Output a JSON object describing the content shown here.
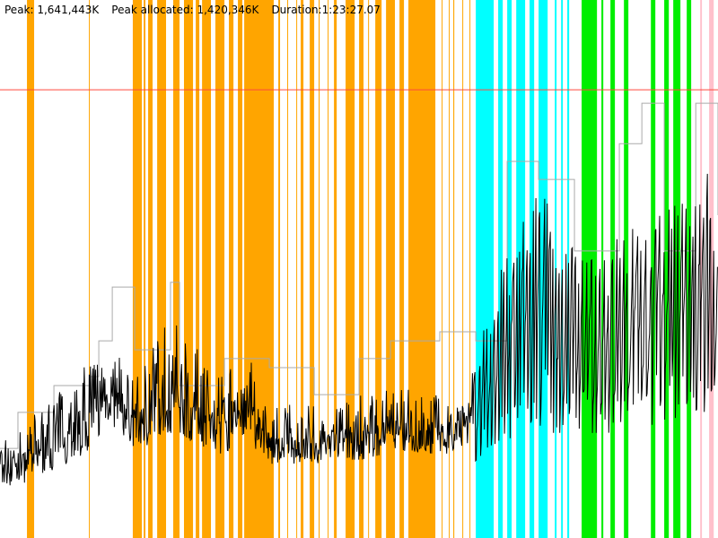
{
  "header": {
    "peak": "Peak: 1,641,443K",
    "peak_allocated": "Peak allocated: 1,420,346K",
    "duration": "Duration:1:23:27.07"
  },
  "chart_data": {
    "type": "line",
    "title": "",
    "xlabel": "",
    "ylabel": "",
    "x_units": "seconds",
    "y_units": "K",
    "xlim": [
      0,
      5007
    ],
    "ylim": [
      0,
      1970000
    ],
    "axes_visible": false,
    "grid": false,
    "reference_line": {
      "value": 1641443,
      "color": "#ff4a3d"
    },
    "band_colors": {
      "orange": "#ffa500",
      "cyan": "#00ffff",
      "green": "#00ee00",
      "pink": "#ffc0cb"
    },
    "bands": {
      "orange": [
        [
          188,
          238
        ],
        [
          620,
          626
        ],
        [
          926,
          989
        ],
        [
          1002,
          1014
        ],
        [
          1033,
          1064
        ],
        [
          1096,
          1158
        ],
        [
          1208,
          1252
        ],
        [
          1283,
          1346
        ],
        [
          1365,
          1390
        ],
        [
          1409,
          1471
        ],
        [
          1502,
          1565
        ],
        [
          1596,
          1628
        ],
        [
          1659,
          1690
        ],
        [
          1703,
          1909
        ],
        [
          1941,
          1953
        ],
        [
          2003,
          2009
        ],
        [
          2066,
          2072
        ],
        [
          2097,
          2116
        ],
        [
          2160,
          2191
        ],
        [
          2222,
          2229
        ],
        [
          2285,
          2291
        ],
        [
          2329,
          2348
        ],
        [
          2410,
          2473
        ],
        [
          2504,
          2535
        ],
        [
          2567,
          2573
        ],
        [
          2617,
          2661
        ],
        [
          2692,
          2754
        ],
        [
          2786,
          2817
        ],
        [
          2848,
          3036
        ],
        [
          3080,
          3086
        ],
        [
          3130,
          3136
        ],
        [
          3161,
          3168
        ],
        [
          3224,
          3230
        ],
        [
          3274,
          3280
        ]
      ],
      "cyan": [
        [
          3318,
          3443
        ],
        [
          3474,
          3506
        ],
        [
          3537,
          3568
        ],
        [
          3600,
          3662
        ],
        [
          3693,
          3725
        ],
        [
          3756,
          3819
        ],
        [
          3869,
          3881
        ],
        [
          3913,
          3925
        ],
        [
          3956,
          3969
        ]
      ],
      "green": [
        [
          4056,
          4163
        ],
        [
          4194,
          4207
        ],
        [
          4257,
          4288
        ],
        [
          4351,
          4382
        ],
        [
          4539,
          4570
        ],
        [
          4632,
          4664
        ],
        [
          4695,
          4745
        ],
        [
          4789,
          4820
        ]
      ],
      "pink": [
        [
          4883,
          4895
        ],
        [
          4945,
          4977
        ]
      ]
    },
    "series": [
      {
        "color": "#aaaaaa",
        "style": "step",
        "points": [
          [
            0,
            328000
          ],
          [
            125,
            460000
          ],
          [
            376,
            558000
          ],
          [
            626,
            591000
          ],
          [
            689,
            722000
          ],
          [
            783,
            919000
          ],
          [
            939,
            689000
          ],
          [
            1189,
            936000
          ],
          [
            1252,
            558000
          ],
          [
            1565,
            657000
          ],
          [
            1878,
            624000
          ],
          [
            2191,
            525000
          ],
          [
            2504,
            657000
          ],
          [
            2723,
            722000
          ],
          [
            3067,
            755000
          ],
          [
            3318,
            722000
          ],
          [
            3537,
            1379000
          ],
          [
            3756,
            1313000
          ],
          [
            4006,
            1051000
          ],
          [
            4319,
            1444000
          ],
          [
            4476,
            1592000
          ],
          [
            4632,
            1051000
          ],
          [
            4852,
            1592000
          ],
          [
            5007,
            1182000
          ]
        ]
      },
      {
        "color": "#000000",
        "style": "oscillating-envelope",
        "points_time_low_high": [
          [
            0,
            115000,
            361000
          ],
          [
            188,
            131000,
            427000
          ],
          [
            626,
            197000,
            657000
          ],
          [
            751,
            328000,
            722000
          ],
          [
            939,
            230000,
            591000
          ],
          [
            1189,
            230000,
            821000
          ],
          [
            1565,
            197000,
            591000
          ],
          [
            1690,
            263000,
            722000
          ],
          [
            1878,
            197000,
            492000
          ],
          [
            2191,
            197000,
            492000
          ],
          [
            2504,
            197000,
            525000
          ],
          [
            2817,
            230000,
            558000
          ],
          [
            3130,
            230000,
            525000
          ],
          [
            3318,
            263000,
            657000
          ],
          [
            3506,
            328000,
            1051000
          ],
          [
            3756,
            394000,
            1313000
          ],
          [
            4069,
            361000,
            1051000
          ],
          [
            4382,
            394000,
            1149000
          ],
          [
            4695,
            427000,
            1215000
          ],
          [
            4945,
            427000,
            1346000
          ],
          [
            5007,
            591000,
            985000
          ]
        ]
      }
    ]
  }
}
